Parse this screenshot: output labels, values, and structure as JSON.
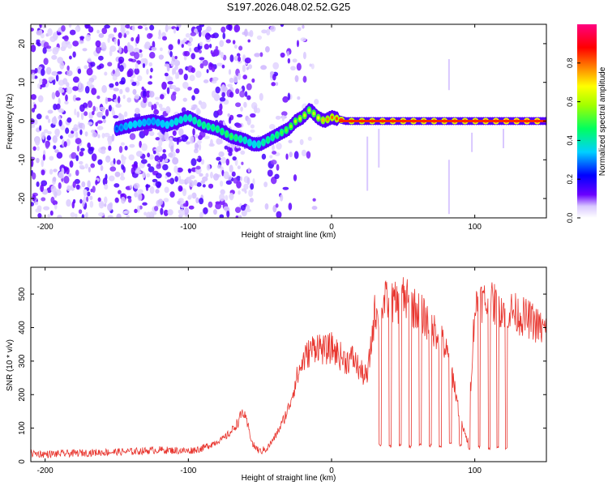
{
  "title": "S197.2026.048.02.52.G25",
  "chart_data": [
    {
      "type": "heatmap",
      "xlabel": "Height of straight line (km)",
      "ylabel": "Frequency (Hz)",
      "xlim": [
        -210,
        150
      ],
      "ylim": [
        -25,
        25
      ],
      "x_ticks": [
        -200,
        -100,
        0,
        100
      ],
      "y_ticks": [
        20,
        10,
        0,
        -10,
        -20
      ],
      "x_tick_labels": [
        "-200",
        "-100",
        "0",
        "100"
      ],
      "y_tick_labels": [
        "20",
        "10",
        "0",
        "-10",
        "-20"
      ],
      "colorbar": {
        "label": "Normalized spectral amplitude",
        "range": [
          0,
          1
        ],
        "ticks": [
          "0.0",
          "0.2",
          "0.4",
          "0.6",
          "0.8"
        ],
        "colormap": "rainbow (violet → blue → cyan → green → yellow → red → magenta)"
      },
      "ridge": {
        "description": "dominant frequency ridge vs height",
        "x": [
          -150,
          -140,
          -125,
          -115,
          -100,
          -90,
          -80,
          -70,
          -60,
          -55,
          -50,
          -45,
          -40,
          -35,
          -30,
          -25,
          -20,
          -15,
          -10,
          -5,
          0,
          10,
          20,
          40,
          60,
          80,
          100,
          120,
          150
        ],
        "y": [
          -2,
          -1,
          0,
          -1,
          1,
          -1,
          -2,
          -4,
          -5,
          -6,
          -6,
          -5,
          -4,
          -3,
          -2,
          0,
          1,
          3,
          1,
          0,
          1,
          0,
          0,
          0,
          0,
          0,
          0,
          0,
          0
        ],
        "amplitude": [
          0.25,
          0.35,
          0.3,
          0.35,
          0.4,
          0.45,
          0.45,
          0.5,
          0.4,
          0.35,
          0.4,
          0.45,
          0.45,
          0.5,
          0.55,
          0.6,
          0.65,
          0.6,
          0.65,
          0.75,
          0.8,
          0.85,
          0.85,
          0.9,
          0.9,
          0.9,
          0.9,
          0.95,
          0.95
        ]
      },
      "grid": false
    },
    {
      "type": "line",
      "xlabel": "Height of straight line (km)",
      "ylabel": "SNR (10 * v/v)",
      "xlim": [
        -210,
        150
      ],
      "ylim": [
        0,
        580
      ],
      "x_ticks": [
        -200,
        -100,
        0,
        100
      ],
      "y_ticks": [
        0,
        100,
        200,
        300,
        400,
        500
      ],
      "x_tick_labels": [
        "-200",
        "-100",
        "0",
        "100"
      ],
      "y_tick_labels": [
        "0",
        "100",
        "200",
        "300",
        "400",
        "500"
      ],
      "line_color": "#e8352e",
      "series": [
        {
          "x": [
            -210,
            -200,
            -180,
            -160,
            -140,
            -120,
            -100,
            -90,
            -80,
            -75,
            -70,
            -65,
            -62,
            -58,
            -55,
            -50,
            -45,
            -40,
            -35,
            -30,
            -25,
            -20,
            -15,
            -10,
            -5,
            0,
            5,
            10,
            15,
            20,
            25,
            30,
            35,
            40,
            45,
            50,
            55,
            60,
            65,
            70,
            75,
            80,
            85,
            90,
            95,
            100,
            105,
            110,
            115,
            120,
            125,
            130,
            135,
            140,
            145,
            150
          ],
          "y": [
            25,
            22,
            25,
            28,
            30,
            35,
            32,
            40,
            60,
            70,
            90,
            120,
            150,
            100,
            50,
            30,
            40,
            70,
            110,
            160,
            240,
            300,
            330,
            350,
            330,
            340,
            320,
            300,
            310,
            270,
            250,
            440,
            470,
            480,
            470,
            490,
            470,
            450,
            430,
            400,
            380,
            330,
            250,
            120,
            60,
            460,
            480,
            470,
            470,
            460,
            450,
            440,
            430,
            420,
            400,
            390
          ]
        }
      ],
      "dropouts": {
        "description": "periodic sharp drops to ~50 between x=30 and x=123",
        "x": [
          34,
          41,
          48,
          55,
          62,
          69,
          76,
          83,
          90,
          96,
          103,
          110,
          116,
          122
        ],
        "y": [
          50,
          45,
          50,
          45,
          50,
          48,
          45,
          55,
          50,
          40,
          45,
          40,
          45,
          40
        ]
      },
      "grid": false
    }
  ]
}
